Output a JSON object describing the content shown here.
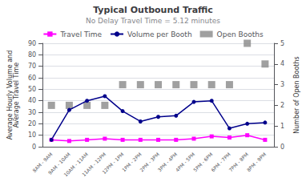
{
  "chart_data": {
    "type": "line",
    "title": "Typical Outbound Traffic",
    "subtitle": "No Delay Travel Time = 5.12 minutes",
    "ylabel": "Average Hourly Volume and\nAverage Travel Time",
    "y2label": "Number of Open Booths",
    "categories": [
      "8AM - 9AM",
      "9AM - 10AM",
      "10AM - 11AM",
      "11AM - 12PM",
      "12PM - 1PM",
      "1PM - 2PM",
      "2PM - 3PM",
      "3PM - 4PM",
      "4PM - 5PM",
      "5PM - 6PM",
      "6PM - 7PM",
      "7PM - 8PM",
      "8PM - 9PM"
    ],
    "series": [
      {
        "name": "Travel Time",
        "type": "line",
        "color": "#FF00FF",
        "marker": "square",
        "values": [
          6,
          5,
          6,
          7,
          6,
          6,
          6,
          6,
          7,
          9,
          8,
          10,
          6
        ]
      },
      {
        "name": "Volume per Booth",
        "type": "line",
        "color": "#00008B",
        "marker": "circle",
        "values": [
          6,
          32,
          40,
          44,
          31,
          22,
          26,
          27,
          39,
          40,
          16,
          20,
          21
        ]
      },
      {
        "name": "Open Booths",
        "type": "scatter",
        "color": "#888888",
        "marker": "square",
        "axis": "y2",
        "values": [
          2,
          2,
          2,
          2,
          3,
          3,
          3,
          3,
          3,
          3,
          3,
          5,
          4
        ]
      }
    ],
    "ylim": [
      0,
      90
    ],
    "yticks": [
      0,
      10,
      20,
      30,
      40,
      50,
      60,
      70,
      80,
      90
    ],
    "y2lim": [
      0,
      5
    ],
    "y2ticks": [
      0,
      1,
      2,
      3,
      4,
      5
    ],
    "grid": true,
    "legend": "top"
  }
}
